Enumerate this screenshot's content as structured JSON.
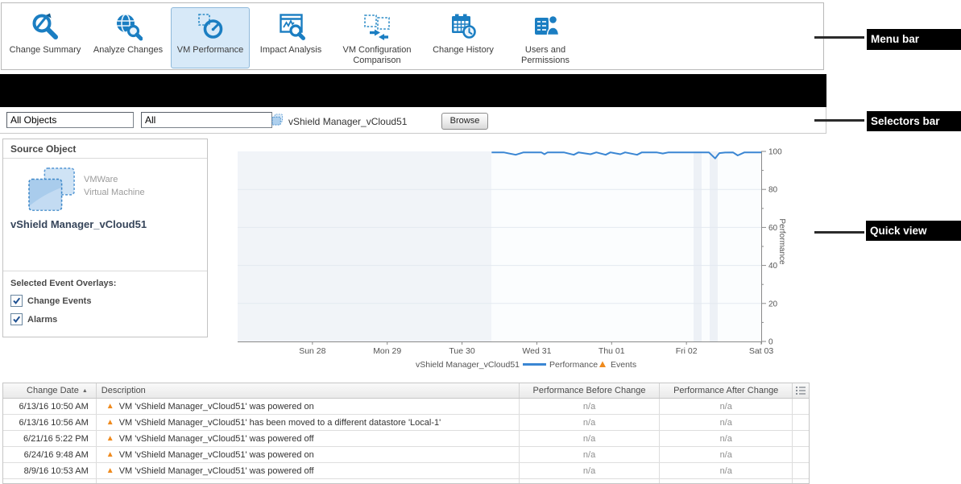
{
  "menu_bar": {
    "items": [
      {
        "label": "Change Summary",
        "icon": "change-summary-icon",
        "selected": false
      },
      {
        "label": "Analyze Changes",
        "icon": "analyze-changes-icon",
        "selected": false
      },
      {
        "label": "VM Performance",
        "icon": "vm-performance-icon",
        "selected": true
      },
      {
        "label": "Impact Analysis",
        "icon": "impact-analysis-icon",
        "selected": false
      },
      {
        "label": "VM Configuration Comparison",
        "icon": "vm-config-comparison-icon",
        "selected": false
      },
      {
        "label": "Change History",
        "icon": "change-history-icon",
        "selected": false
      },
      {
        "label": "Users and Permissions",
        "icon": "users-permissions-icon",
        "selected": false
      }
    ]
  },
  "selectors_bar": {
    "scope_value": "All Objects",
    "filter_value": "All",
    "selected_object": "vShield Manager_vCloud51",
    "browse_label": "Browse"
  },
  "source_panel": {
    "title": "Source Object",
    "object_type_line1": "VMWare",
    "object_type_line2": "Virtual Machine",
    "object_name": "vShield Manager_vCloud51",
    "overlays_label": "Selected Event Overlays:",
    "overlays": [
      {
        "label": "Change Events",
        "checked": true
      },
      {
        "label": "Alarms",
        "checked": true
      }
    ]
  },
  "chart_data": {
    "type": "line",
    "title": "",
    "xlabel": "",
    "ylabel": "Performance",
    "ylim": [
      0,
      100
    ],
    "grid": true,
    "y_ticks": [
      0,
      20,
      40,
      60,
      80,
      100
    ],
    "x_ticks": [
      "Sun 28",
      "Mon 29",
      "Tue 30",
      "Wed 31",
      "Thu 01",
      "Fri 02",
      "Sat 03"
    ],
    "legend_position": "bottom",
    "legend": {
      "series_object": "vShield Manager_vCloud51",
      "series_label": "Performance",
      "events_label": "Events",
      "series_color": "#3a86d3",
      "events_color": "#ef8a1d"
    },
    "series": [
      {
        "name": "Performance",
        "color": "#3a86d3",
        "description": "No data before ~late Tue 30; line is flat near 100 through Sat 03 with brief minor dips (one dip to ~96 just after Fri 02)",
        "points_day_value": [
          [
            "Wed 31",
            100
          ],
          [
            "Thu 01",
            100
          ],
          [
            "Fri 02",
            99
          ],
          [
            "Sat 03",
            100
          ]
        ],
        "render_points": [
          [
            0.485,
            99.5
          ],
          [
            0.508,
            99.5
          ],
          [
            0.531,
            98.2
          ],
          [
            0.546,
            99.5
          ],
          [
            0.58,
            99.5
          ],
          [
            0.586,
            98.5
          ],
          [
            0.592,
            99.5
          ],
          [
            0.623,
            99.5
          ],
          [
            0.642,
            98.2
          ],
          [
            0.651,
            99.5
          ],
          [
            0.674,
            98.5
          ],
          [
            0.685,
            99.5
          ],
          [
            0.703,
            98.2
          ],
          [
            0.712,
            99.5
          ],
          [
            0.731,
            98.5
          ],
          [
            0.74,
            99.5
          ],
          [
            0.763,
            98.2
          ],
          [
            0.772,
            99.5
          ],
          [
            0.8,
            99.5
          ],
          [
            0.812,
            98.9
          ],
          [
            0.823,
            99.5
          ],
          [
            0.869,
            99.5
          ],
          [
            0.9,
            99.5
          ],
          [
            0.912,
            96.3
          ],
          [
            0.92,
            99.1
          ],
          [
            0.931,
            99.4
          ],
          [
            0.946,
            99.5
          ],
          [
            0.955,
            97.9
          ],
          [
            0.968,
            99.5
          ],
          [
            1.0,
            99.5
          ]
        ]
      }
    ]
  },
  "annotations": [
    {
      "label": "Menu bar"
    },
    {
      "label": "Selectors bar"
    },
    {
      "label": "Quick view"
    }
  ],
  "events_table": {
    "columns": [
      "Change Date",
      "Description",
      "Performance Before Change",
      "Performance After Change"
    ],
    "sort_column": "Change Date",
    "sort_direction": "asc",
    "rows": [
      {
        "date": "6/13/16 10:50 AM",
        "description": "VM 'vShield Manager_vCloud51' was powered on",
        "before": "n/a",
        "after": "n/a"
      },
      {
        "date": "6/13/16 10:56 AM",
        "description": "VM 'vShield Manager_vCloud51' has been moved to a different datastore 'Local-1'",
        "before": "n/a",
        "after": "n/a"
      },
      {
        "date": "6/21/16 5:22 PM",
        "description": "VM 'vShield Manager_vCloud51' was powered off",
        "before": "n/a",
        "after": "n/a"
      },
      {
        "date": "6/24/16 9:48 AM",
        "description": "VM 'vShield Manager_vCloud51' was powered on",
        "before": "n/a",
        "after": "n/a"
      },
      {
        "date": "8/9/16 10:53 AM",
        "description": "VM 'vShield Manager_vCloud51' was powered off",
        "before": "n/a",
        "after": "n/a"
      }
    ]
  },
  "colors": {
    "accent_blue": "#1b7ec2",
    "line_blue": "#3a86d3",
    "event_orange": "#ef8a1d",
    "selected_item_bg": "#d7e9f8",
    "black_bar": "#000000"
  }
}
